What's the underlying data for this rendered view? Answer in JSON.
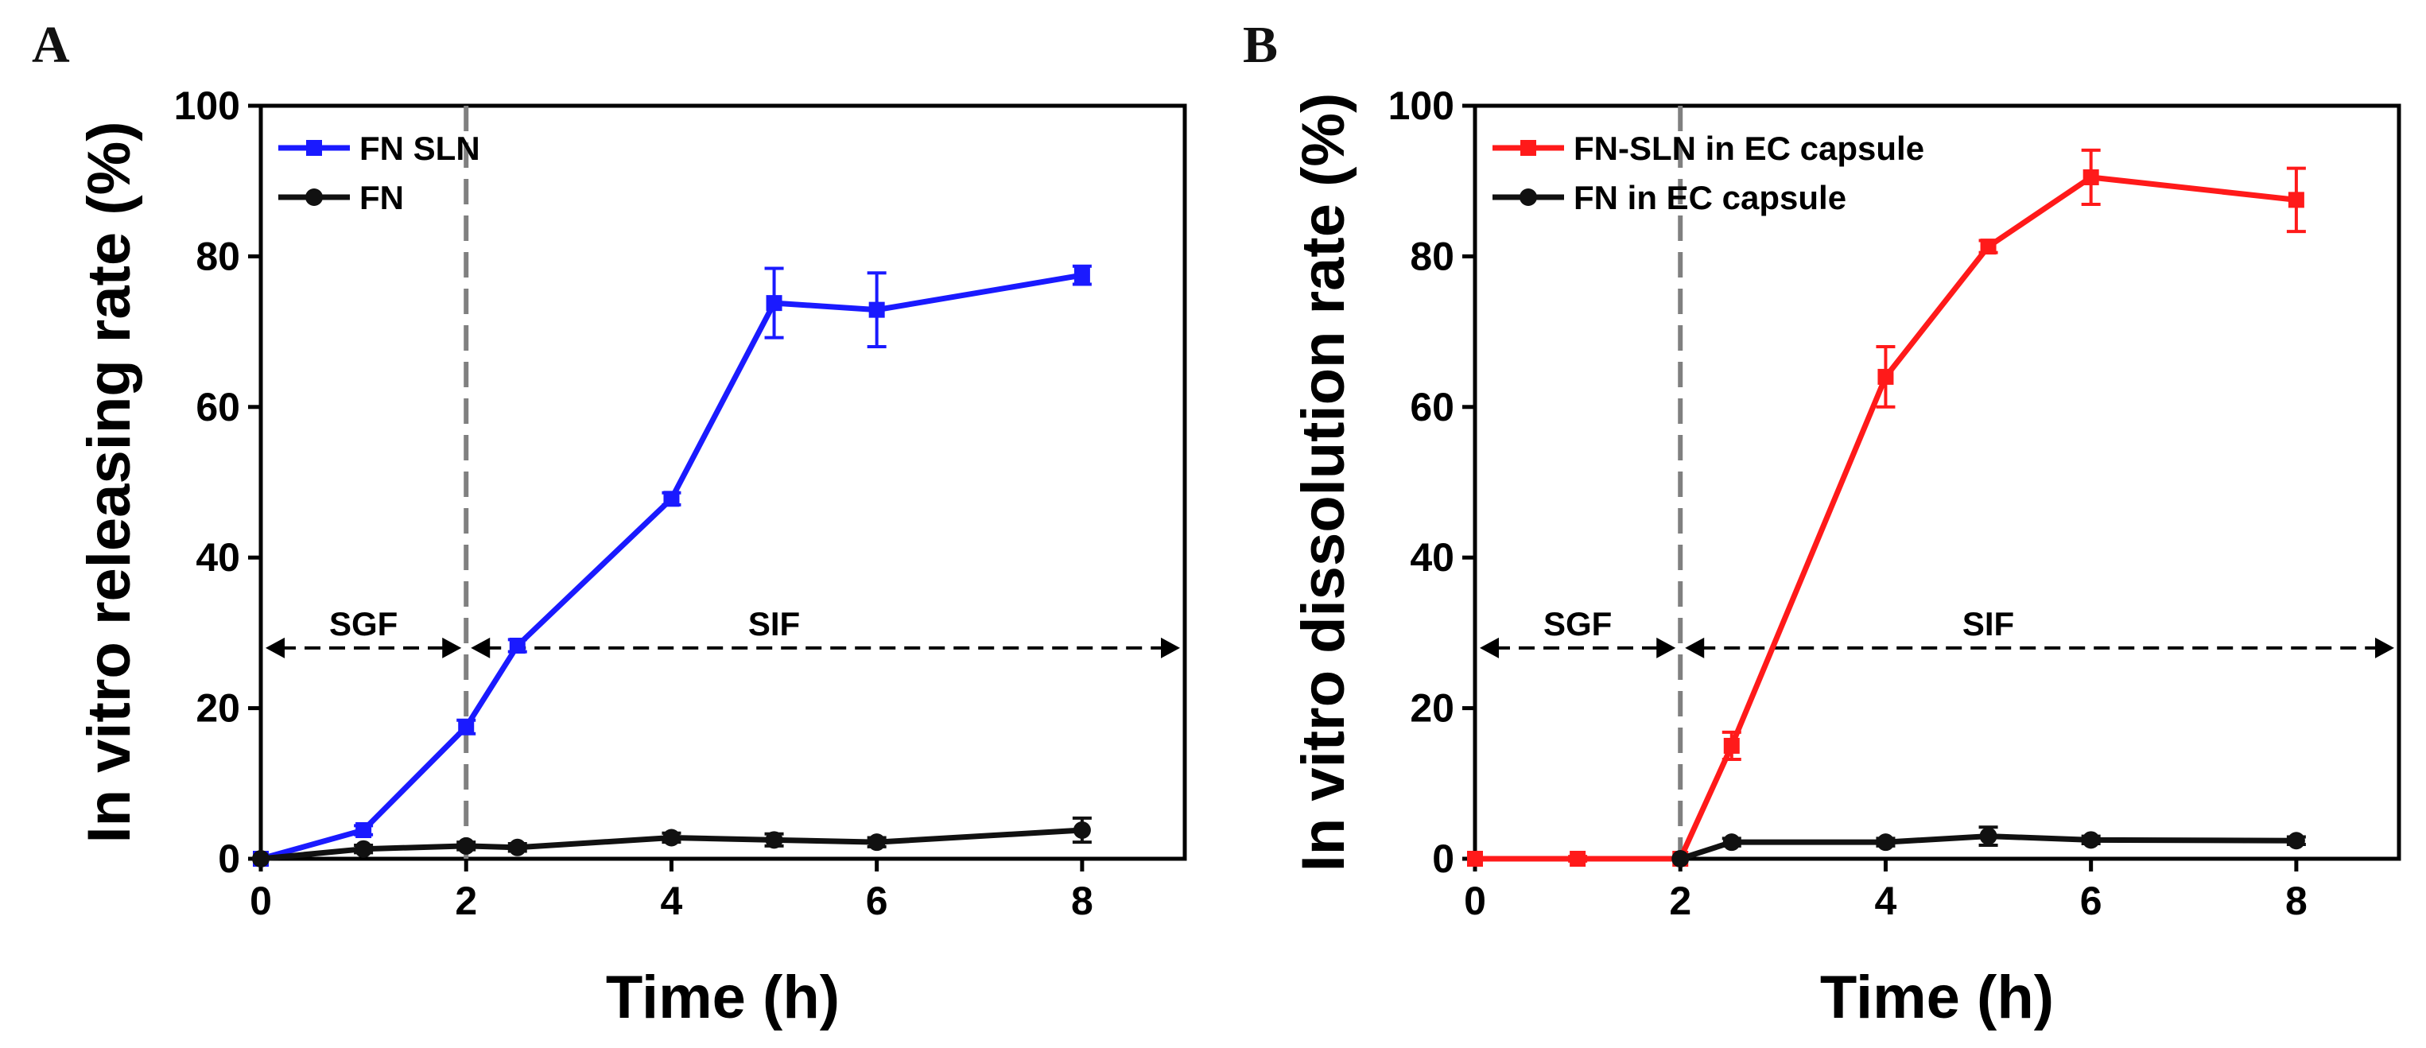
{
  "chart_data": [
    {
      "panel": "A",
      "type": "line",
      "xlabel": "Time (h)",
      "ylabel": "In vitro releasing rate (%)",
      "xlim": [
        0,
        9
      ],
      "ylim": [
        0,
        100
      ],
      "xticks": [
        0,
        2,
        4,
        6,
        8
      ],
      "yticks": [
        0,
        20,
        40,
        60,
        80,
        100
      ],
      "legend_position": "top-left",
      "divider_x": 2,
      "divider_color": "#808080",
      "phases": [
        {
          "label": "SGF",
          "from": 0,
          "to": 2
        },
        {
          "label": "SIF",
          "from": 2,
          "to": 9
        }
      ],
      "phase_arrow_y": 28,
      "series": [
        {
          "name": "FN SLN",
          "color": "#1a1aff",
          "marker": "square",
          "x": [
            0,
            1,
            2,
            2.5,
            4,
            5,
            6,
            8
          ],
          "y": [
            0,
            3.8,
            17.5,
            28.3,
            47.8,
            73.8,
            72.9,
            77.5
          ],
          "err": [
            0,
            0.6,
            0.9,
            0.8,
            0.8,
            4.6,
            4.9,
            1.2
          ]
        },
        {
          "name": "FN",
          "color": "#111111",
          "marker": "circle",
          "x": [
            0,
            1,
            2,
            2.5,
            4,
            5,
            6,
            8
          ],
          "y": [
            0,
            1.3,
            1.7,
            1.5,
            2.8,
            2.5,
            2.2,
            3.8
          ],
          "err": [
            0,
            0.5,
            0.5,
            0.5,
            0.6,
            0.8,
            0.6,
            1.6
          ]
        }
      ]
    },
    {
      "panel": "B",
      "type": "line",
      "xlabel": "Time (h)",
      "ylabel": "In vitro dissolution rate (%)",
      "xlim": [
        0,
        9
      ],
      "ylim": [
        0,
        100
      ],
      "xticks": [
        0,
        2,
        4,
        6,
        8
      ],
      "yticks": [
        0,
        20,
        40,
        60,
        80,
        100
      ],
      "legend_position": "top-left",
      "divider_x": 2,
      "divider_color": "#808080",
      "phases": [
        {
          "label": "SGF",
          "from": 0,
          "to": 2
        },
        {
          "label": "SIF",
          "from": 2,
          "to": 9
        }
      ],
      "phase_arrow_y": 28,
      "series": [
        {
          "name": "FN-SLN in EC capsule",
          "color": "#ff1a1a",
          "marker": "square",
          "x": [
            0,
            1,
            2,
            2.5,
            4,
            5,
            6,
            8
          ],
          "y": [
            0,
            0,
            0,
            15,
            64,
            81.3,
            90.5,
            87.5
          ],
          "err": [
            0,
            0.3,
            0,
            1.8,
            4,
            0.8,
            3.6,
            4.2
          ]
        },
        {
          "name": "FN in EC capsule",
          "color": "#111111",
          "marker": "circle",
          "x": [
            2,
            2.5,
            4,
            5,
            6,
            8
          ],
          "y": [
            0,
            2.2,
            2.2,
            3.0,
            2.5,
            2.4
          ],
          "err": [
            0,
            0.5,
            0.5,
            1.2,
            0.5,
            0.5
          ]
        }
      ]
    }
  ]
}
